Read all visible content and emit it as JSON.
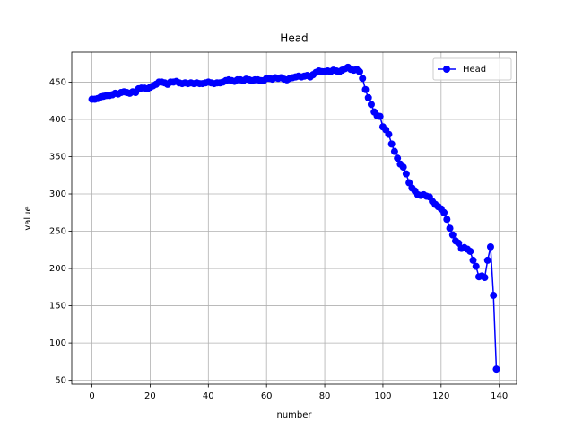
{
  "chart_data": {
    "type": "line",
    "title": "Head",
    "xlabel": "number",
    "ylabel": "value",
    "x": [
      0,
      1,
      2,
      3,
      4,
      5,
      6,
      7,
      8,
      9,
      10,
      11,
      12,
      13,
      14,
      15,
      16,
      17,
      18,
      19,
      20,
      21,
      22,
      23,
      24,
      25,
      26,
      27,
      28,
      29,
      30,
      31,
      32,
      33,
      34,
      35,
      36,
      37,
      38,
      39,
      40,
      41,
      42,
      43,
      44,
      45,
      46,
      47,
      48,
      49,
      50,
      51,
      52,
      53,
      54,
      55,
      56,
      57,
      58,
      59,
      60,
      61,
      62,
      63,
      64,
      65,
      66,
      67,
      68,
      69,
      70,
      71,
      72,
      73,
      74,
      75,
      76,
      77,
      78,
      79,
      80,
      81,
      82,
      83,
      84,
      85,
      86,
      87,
      88,
      89,
      90,
      91,
      92,
      93,
      94,
      95,
      96,
      97,
      98,
      99,
      100,
      101,
      102,
      103,
      104,
      105,
      106,
      107,
      108,
      109,
      110,
      111,
      112,
      113,
      114,
      115,
      116,
      117,
      118,
      119,
      120,
      121,
      122,
      123,
      124,
      125,
      126,
      127,
      128,
      129,
      130,
      131,
      132,
      133,
      134,
      135,
      136,
      137,
      138,
      139
    ],
    "series": [
      {
        "name": "Head",
        "color": "#0000ff",
        "values": [
          427,
          427,
          428,
          430,
          431,
          432,
          432,
          433,
          435,
          434,
          436,
          437,
          436,
          435,
          437,
          436,
          441,
          442,
          442,
          441,
          443,
          445,
          447,
          450,
          450,
          449,
          447,
          450,
          450,
          451,
          449,
          448,
          449,
          448,
          449,
          448,
          449,
          448,
          448,
          449,
          450,
          449,
          448,
          449,
          449,
          450,
          452,
          453,
          452,
          451,
          453,
          453,
          452,
          454,
          453,
          452,
          453,
          453,
          452,
          452,
          455,
          455,
          454,
          456,
          455,
          456,
          454,
          453,
          455,
          456,
          457,
          458,
          457,
          458,
          459,
          457,
          460,
          463,
          465,
          464,
          464,
          465,
          464,
          466,
          465,
          464,
          466,
          468,
          470,
          467,
          466,
          467,
          464,
          455,
          440,
          429,
          420,
          410,
          405,
          404,
          390,
          386,
          380,
          367,
          357,
          348,
          340,
          336,
          327,
          315,
          308,
          304,
          299,
          298,
          299,
          297,
          296,
          290,
          286,
          283,
          280,
          275,
          266,
          254,
          245,
          237,
          234,
          227,
          228,
          226,
          223,
          211,
          203,
          189,
          190,
          188,
          211,
          229,
          164,
          65
        ]
      }
    ],
    "xlim": [
      -6.95,
      145.95
    ],
    "xticks": [
      0,
      20,
      40,
      60,
      80,
      100,
      120,
      140
    ],
    "ylim": [
      44.75,
      490.25
    ],
    "yticks": [
      50,
      100,
      150,
      200,
      250,
      300,
      350,
      400,
      450
    ],
    "grid": true,
    "legend": "upper right"
  }
}
